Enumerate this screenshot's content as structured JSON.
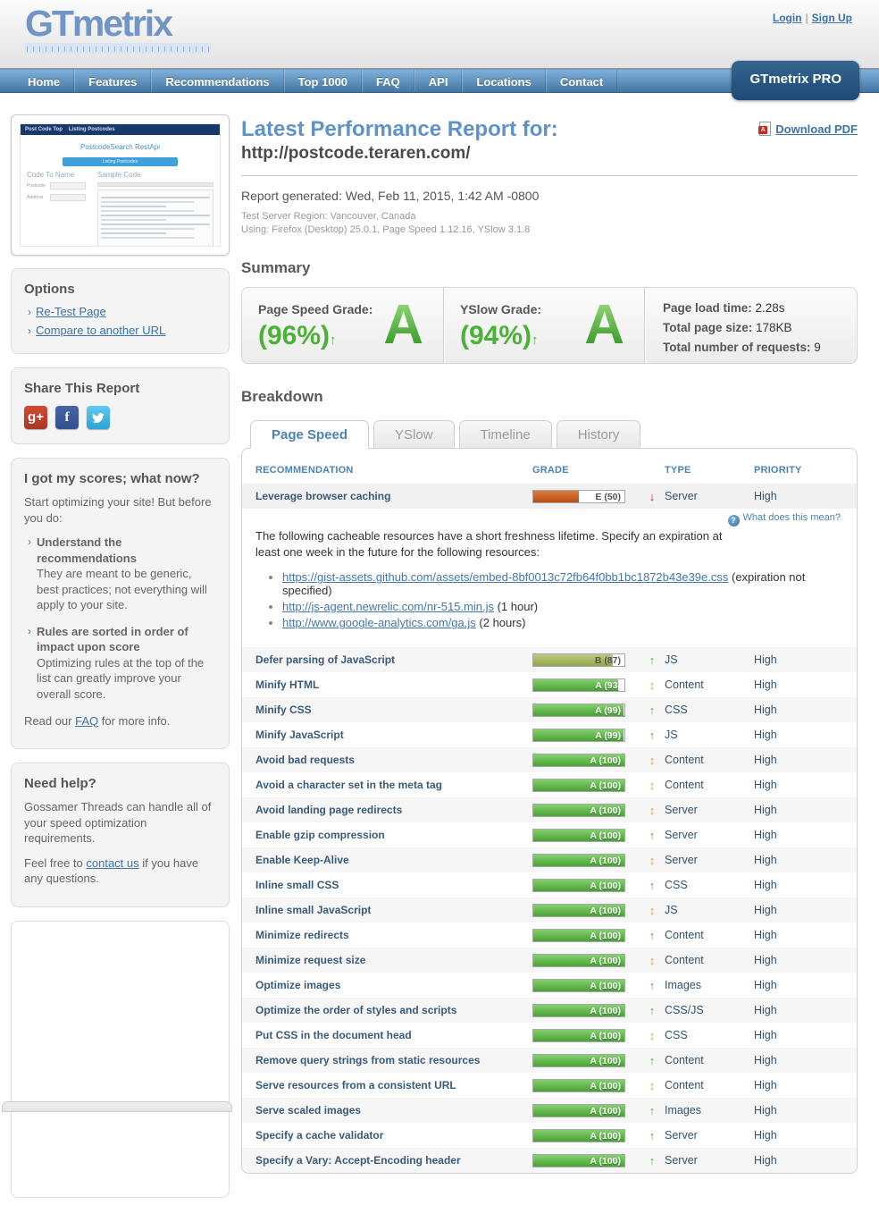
{
  "header": {
    "logo": "GTmetrix",
    "login_label": "Login",
    "signup_label": "Sign Up",
    "separator": "|",
    "nav_items": [
      "Home",
      "Features",
      "Recommendations",
      "Top 1000",
      "FAQ",
      "API",
      "Locations",
      "Contact"
    ],
    "pro_label": "GTmetrix PRO"
  },
  "report": {
    "title": "Latest Performance Report for:",
    "url": "http://postcode.teraren.com/",
    "download_pdf_label": "Download PDF",
    "generated": "Report generated: Wed, Feb 11, 2015, 1:42 AM -0800",
    "server_region": "Test Server Region: Vancouver, Canada",
    "using": "Using: Firefox (Desktop) 25.0.1, Page Speed 1.12.16, YSlow 3.1.8"
  },
  "summary": {
    "heading": "Summary",
    "page_speed": {
      "label": "Page Speed Grade:",
      "percent": "(96%)",
      "letter": "A",
      "trend": "up"
    },
    "yslow": {
      "label": "YSlow Grade:",
      "percent": "(94%)",
      "letter": "A",
      "trend": "up"
    },
    "stats": [
      {
        "label": "Page load time:",
        "value": "2.28s"
      },
      {
        "label": "Total page size:",
        "value": "178KB"
      },
      {
        "label": "Total number of requests:",
        "value": "9"
      }
    ]
  },
  "breakdown": {
    "heading": "Breakdown",
    "tabs": [
      {
        "label": "Page Speed",
        "active": true
      },
      {
        "label": "YSlow",
        "active": false
      },
      {
        "label": "Timeline",
        "active": false
      },
      {
        "label": "History",
        "active": false
      }
    ],
    "columns": [
      "RECOMMENDATION",
      "GRADE",
      "TYPE",
      "PRIORITY"
    ],
    "expanded_row": {
      "name": "Leverage browser caching",
      "grade_letter": "E",
      "grade_label": "E (50)",
      "score": 50,
      "trend": "down",
      "type": "Server",
      "priority": "High"
    },
    "detail": {
      "help_label": "What does this mean?",
      "description": "The following cacheable resources have a short freshness lifetime. Specify an expiration at least one week in the future for the following resources:",
      "resources": [
        {
          "url": "https://gist-assets.github.com/assets/embed-8bf0013c72fb64f0bb1bc1872b43e39e.css",
          "note": "(expiration not specified)"
        },
        {
          "url": "http://js-agent.newrelic.com/nr-515.min.js",
          "note": "(1 hour)"
        },
        {
          "url": "http://www.google-analytics.com/ga.js",
          "note": "(2 hours)"
        }
      ]
    },
    "rows": [
      {
        "name": "Defer parsing of JavaScript",
        "grade_letter": "B",
        "grade_label": "B (87)",
        "score": 87,
        "trend": "up",
        "type": "JS",
        "priority": "High"
      },
      {
        "name": "Minify HTML",
        "grade_letter": "A",
        "grade_label": "A (93)",
        "score": 93,
        "trend": "both",
        "type": "Content",
        "priority": "High"
      },
      {
        "name": "Minify CSS",
        "grade_letter": "A",
        "grade_label": "A (99)",
        "score": 99,
        "trend": "up",
        "type": "CSS",
        "priority": "High"
      },
      {
        "name": "Minify JavaScript",
        "grade_letter": "A",
        "grade_label": "A (99)",
        "score": 99,
        "trend": "up",
        "type": "JS",
        "priority": "High"
      },
      {
        "name": "Avoid bad requests",
        "grade_letter": "A",
        "grade_label": "A (100)",
        "score": 100,
        "trend": "both",
        "type": "Content",
        "priority": "High"
      },
      {
        "name": "Avoid a character set in the meta tag",
        "grade_letter": "A",
        "grade_label": "A (100)",
        "score": 100,
        "trend": "both",
        "type": "Content",
        "priority": "High"
      },
      {
        "name": "Avoid landing page redirects",
        "grade_letter": "A",
        "grade_label": "A (100)",
        "score": 100,
        "trend": "both",
        "type": "Server",
        "priority": "High"
      },
      {
        "name": "Enable gzip compression",
        "grade_letter": "A",
        "grade_label": "A (100)",
        "score": 100,
        "trend": "up",
        "type": "Server",
        "priority": "High"
      },
      {
        "name": "Enable Keep-Alive",
        "grade_letter": "A",
        "grade_label": "A (100)",
        "score": 100,
        "trend": "both",
        "type": "Server",
        "priority": "High"
      },
      {
        "name": "Inline small CSS",
        "grade_letter": "A",
        "grade_label": "A (100)",
        "score": 100,
        "trend": "up",
        "type": "CSS",
        "priority": "High"
      },
      {
        "name": "Inline small JavaScript",
        "grade_letter": "A",
        "grade_label": "A (100)",
        "score": 100,
        "trend": "both",
        "type": "JS",
        "priority": "High"
      },
      {
        "name": "Minimize redirects",
        "grade_letter": "A",
        "grade_label": "A (100)",
        "score": 100,
        "trend": "up",
        "type": "Content",
        "priority": "High"
      },
      {
        "name": "Minimize request size",
        "grade_letter": "A",
        "grade_label": "A (100)",
        "score": 100,
        "trend": "both",
        "type": "Content",
        "priority": "High"
      },
      {
        "name": "Optimize images",
        "grade_letter": "A",
        "grade_label": "A (100)",
        "score": 100,
        "trend": "up",
        "type": "Images",
        "priority": "High"
      },
      {
        "name": "Optimize the order of styles and scripts",
        "grade_letter": "A",
        "grade_label": "A (100)",
        "score": 100,
        "trend": "up",
        "type": "CSS/JS",
        "priority": "High"
      },
      {
        "name": "Put CSS in the document head",
        "grade_letter": "A",
        "grade_label": "A (100)",
        "score": 100,
        "trend": "both",
        "type": "CSS",
        "priority": "High"
      },
      {
        "name": "Remove query strings from static resources",
        "grade_letter": "A",
        "grade_label": "A (100)",
        "score": 100,
        "trend": "up",
        "type": "Content",
        "priority": "High"
      },
      {
        "name": "Serve resources from a consistent URL",
        "grade_letter": "A",
        "grade_label": "A (100)",
        "score": 100,
        "trend": "both",
        "type": "Content",
        "priority": "High"
      },
      {
        "name": "Serve scaled images",
        "grade_letter": "A",
        "grade_label": "A (100)",
        "score": 100,
        "trend": "up",
        "type": "Images",
        "priority": "High"
      },
      {
        "name": "Specify a cache validator",
        "grade_letter": "A",
        "grade_label": "A (100)",
        "score": 100,
        "trend": "up",
        "type": "Server",
        "priority": "High"
      },
      {
        "name": "Specify a Vary: Accept-Encoding header",
        "grade_letter": "A",
        "grade_label": "A (100)",
        "score": 100,
        "trend": "up",
        "type": "Server",
        "priority": "High"
      }
    ]
  },
  "sidebar": {
    "thumbnail": {
      "nav_title": "Post Code Top",
      "nav_item": "Listing Postcodes",
      "page_title": "PostcodeSearch RestApi",
      "button_label": "Listing Postcodes",
      "left_heading": "Code To Name",
      "right_heading": "Sample Code",
      "field_labels": [
        "Postcode",
        "Address"
      ]
    },
    "options": {
      "heading": "Options",
      "links": [
        "Re-Test Page",
        "Compare to another URL"
      ]
    },
    "share": {
      "heading": "Share This Report",
      "icons": [
        "googleplus",
        "facebook",
        "twitter"
      ]
    },
    "scores_box": {
      "heading": "I got my scores; what now?",
      "intro": "Start optimizing your site! But before you do:",
      "bullets": [
        {
          "title": "Understand the recommendations",
          "text": "They are meant to be generic, best practices; not everything will apply to your site."
        },
        {
          "title": "Rules are sorted in order of impact upon score",
          "text": "Optimizing rules at the top of the list can greatly improve your overall score."
        }
      ],
      "footer_pre": "Read our ",
      "footer_link": "FAQ",
      "footer_post": " for more info."
    },
    "help_box": {
      "heading": "Need help?",
      "text1": "Gossamer Threads can handle all of your speed optimization requirements.",
      "text2_pre": "Feel free to ",
      "text2_link": "contact us",
      "text2_post": " if you have any questions."
    }
  },
  "colors": {
    "accent_blue": "#4a84b8",
    "grade_green": "#4bb238",
    "alert_red": "#cc2a1d",
    "neutral_orange": "#e9a13b"
  }
}
